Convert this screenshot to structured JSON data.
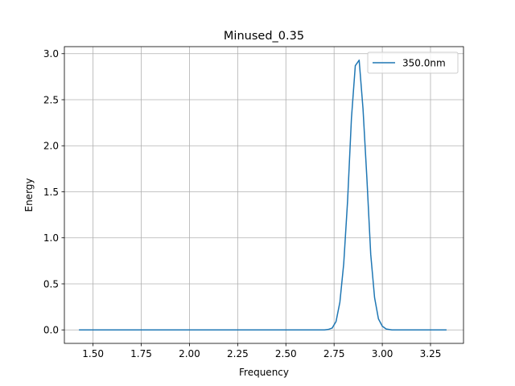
{
  "chart_data": {
    "type": "line",
    "title": "Minused_0.35",
    "xlabel": "Frequency",
    "ylabel": "Energy",
    "xlim": [
      1.3513,
      3.4211
    ],
    "ylim": [
      -0.1465,
      3.0765
    ],
    "xticks": [
      1.5,
      1.75,
      2.0,
      2.25,
      2.5,
      2.75,
      3.0,
      3.25
    ],
    "xtick_labels": [
      "1.50",
      "1.75",
      "2.00",
      "2.25",
      "2.50",
      "2.75",
      "3.00",
      "3.25"
    ],
    "yticks": [
      0.0,
      0.5,
      1.0,
      1.5,
      2.0,
      2.5,
      3.0
    ],
    "ytick_labels": [
      "0.0",
      "0.5",
      "1.0",
      "1.5",
      "2.0",
      "2.5",
      "3.0"
    ],
    "grid": true,
    "legend_position": "upper right",
    "series": [
      {
        "name": "350.0nm",
        "color": "#1f77b4",
        "x": [
          1.43,
          1.5,
          1.6,
          1.7,
          1.8,
          1.9,
          2.0,
          2.1,
          2.2,
          2.3,
          2.4,
          2.5,
          2.6,
          2.65,
          2.7,
          2.72,
          2.74,
          2.76,
          2.78,
          2.8,
          2.82,
          2.84,
          2.86,
          2.88,
          2.9,
          2.92,
          2.94,
          2.96,
          2.98,
          3.0,
          3.02,
          3.05,
          3.1,
          3.2,
          3.3,
          3.33
        ],
        "y": [
          0.0,
          0.0,
          0.0,
          0.0,
          0.0,
          0.0,
          0.0,
          0.0,
          0.0,
          0.0,
          0.0,
          0.0,
          0.0,
          0.0,
          0.0,
          0.005,
          0.02,
          0.09,
          0.3,
          0.72,
          1.4,
          2.3,
          2.87,
          2.93,
          2.4,
          1.65,
          0.82,
          0.35,
          0.12,
          0.04,
          0.01,
          0.0,
          0.0,
          0.0,
          0.0,
          0.0
        ]
      }
    ]
  }
}
